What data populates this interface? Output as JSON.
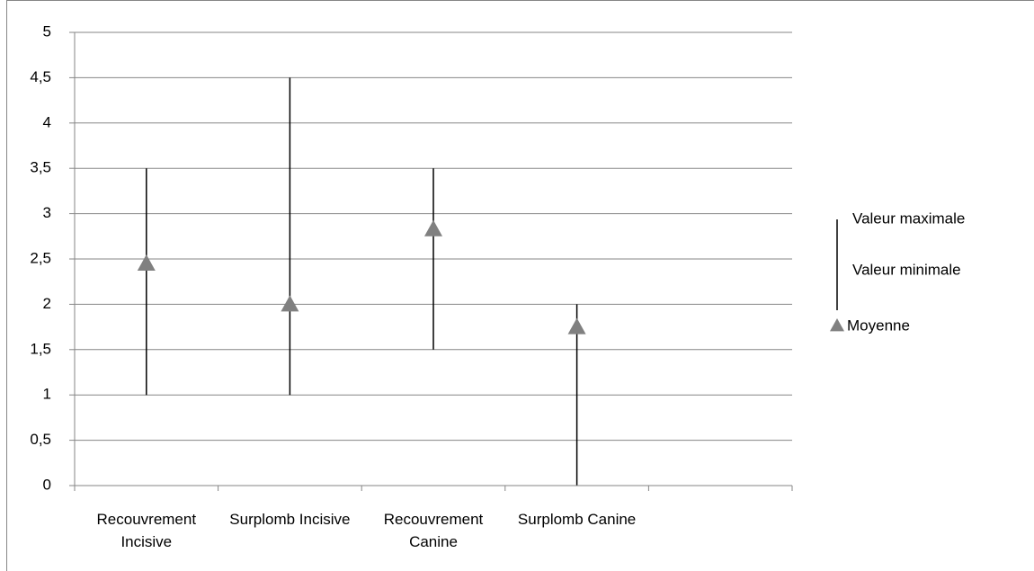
{
  "chart_data": {
    "type": "stock",
    "categories": [
      "Recouvrement Incisive",
      "Surplomb Incisive",
      "Recouvrement Canine",
      "Surplomb Canine",
      null
    ],
    "series": [
      {
        "name": "Valeur maximale",
        "color": "#000000",
        "values": [
          3.5,
          4.5,
          3.5,
          2,
          null
        ]
      },
      {
        "name": "Valeur minimale",
        "color": "#000000",
        "values": [
          1,
          1,
          1.5,
          0,
          null
        ]
      },
      {
        "name": "Moyenne",
        "color": "#808080",
        "values": [
          2.45,
          2,
          2.83,
          1.75,
          null
        ]
      }
    ],
    "ylim": [
      0,
      5
    ],
    "yticks": [
      0,
      {
        "value": 0.5,
        "label": "0,5"
      },
      1,
      {
        "value": 1.5,
        "label": "1,5"
      },
      2,
      {
        "value": 2.5,
        "label": "2,5"
      },
      3,
      {
        "value": 3.5,
        "label": "3,5"
      },
      4,
      {
        "value": 4.5,
        "label": "4,5"
      },
      5
    ],
    "grid": true,
    "legend": "right"
  }
}
